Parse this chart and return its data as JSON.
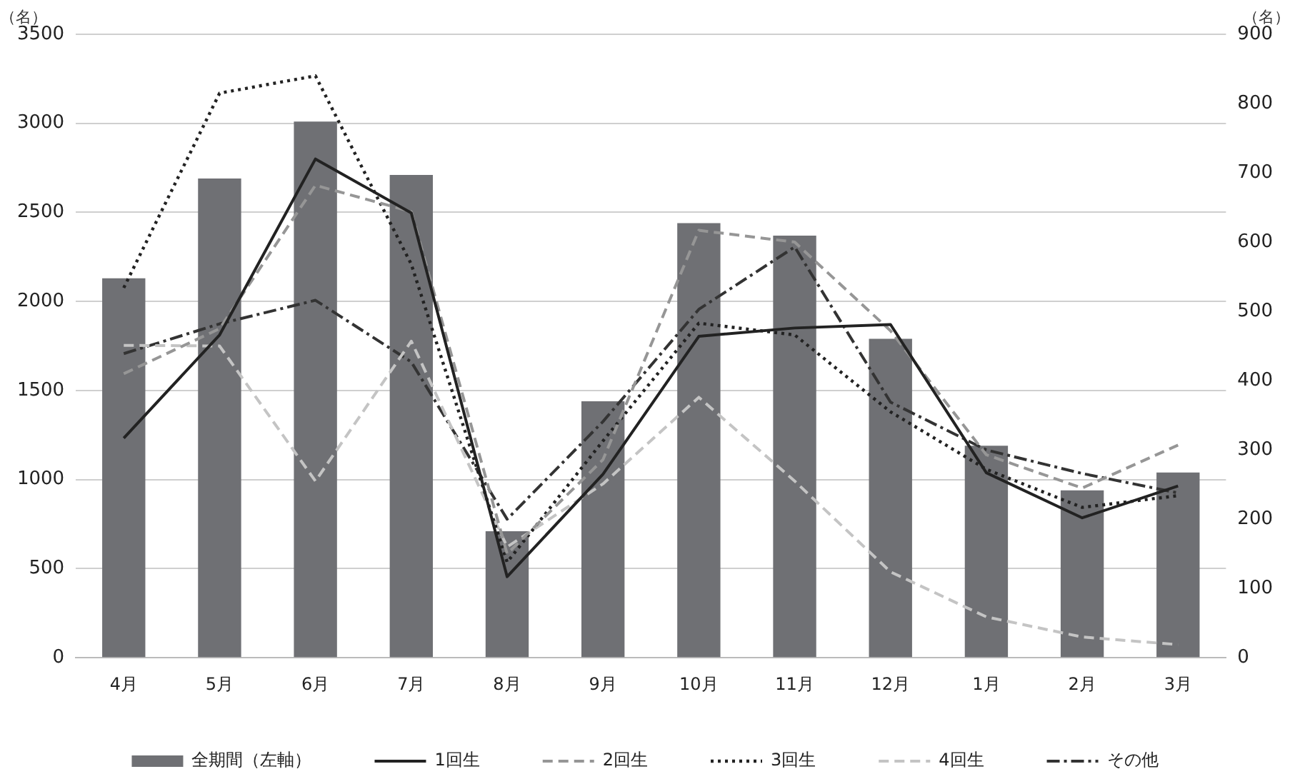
{
  "chart_data": {
    "type": "bar",
    "categories": [
      "4月",
      "5月",
      "6月",
      "7月",
      "8月",
      "9月",
      "10月",
      "11月",
      "12月",
      "1月",
      "2月",
      "3月"
    ],
    "ylabel": "（名）",
    "y2label": "（名）",
    "ylim": [
      0,
      3500
    ],
    "yticks": [
      0,
      500,
      1000,
      1500,
      2000,
      2500,
      3000,
      3500
    ],
    "y2lim": [
      0,
      900
    ],
    "y2ticks": [
      0,
      100,
      200,
      300,
      400,
      500,
      600,
      700,
      800,
      900
    ],
    "grid": "y",
    "legend": "bottom",
    "marker": "none",
    "series": [
      {
        "name": "全期間（左軸）",
        "color": "#6f7074",
        "values": [
          2130,
          2690,
          3010,
          2710,
          710,
          1440,
          2440,
          2370,
          1790,
          1190,
          940,
          1040
        ]
      },
      {
        "name": "1回生",
        "type": "line",
        "axis": "y2",
        "line_style": "solid",
        "color": "#222222",
        "values": [
          317,
          466,
          720,
          642,
          117,
          265,
          464,
          476,
          481,
          267,
          202,
          248
        ]
      },
      {
        "name": "2回生",
        "type": "line",
        "axis": "y2",
        "line_style": "dashed",
        "color": "#969696",
        "values": [
          410,
          475,
          682,
          644,
          150,
          286,
          617,
          600,
          472,
          293,
          245,
          307
        ]
      },
      {
        "name": "3回生",
        "type": "line",
        "axis": "y2",
        "line_style": "dotted",
        "color": "#222222",
        "values": [
          534,
          815,
          840,
          568,
          138,
          313,
          483,
          466,
          355,
          272,
          217,
          234
        ]
      },
      {
        "name": "4回生",
        "type": "line",
        "axis": "y2",
        "line_style": "dashed",
        "color": "#c4c4c4",
        "values": [
          451,
          450,
          255,
          457,
          160,
          251,
          376,
          255,
          124,
          59,
          30,
          19
        ]
      },
      {
        "name": "その他",
        "type": "line",
        "axis": "y2",
        "line_style": "dashdot",
        "color": "#333333",
        "values": [
          439,
          482,
          516,
          427,
          200,
          341,
          503,
          593,
          369,
          300,
          266,
          238
        ]
      }
    ]
  }
}
